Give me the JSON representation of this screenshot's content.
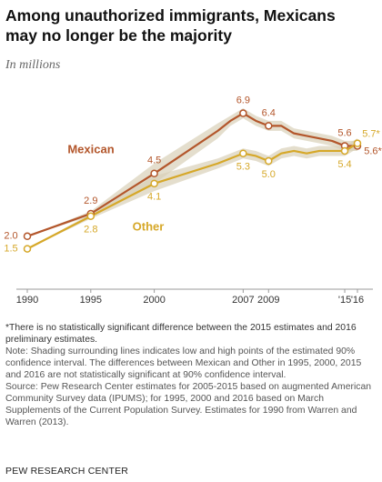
{
  "chart_data": {
    "type": "line",
    "title": "Among unauthorized immigrants, Mexicans may no longer be the majority",
    "subtitle": "In millions",
    "x": [
      1990,
      1995,
      2000,
      2005,
      2006,
      2007,
      2008,
      2009,
      2010,
      2011,
      2012,
      2013,
      2014,
      2015,
      2016
    ],
    "xlim": [
      1990,
      2016
    ],
    "xticks": [
      1990,
      1995,
      2000,
      2007,
      2009,
      {
        "value": 2015,
        "label": "'15"
      },
      {
        "value": 2016,
        "label": "'16"
      }
    ],
    "ylim": [
      0,
      10
    ],
    "series": [
      {
        "name": "Mexican",
        "color": "#b3562b",
        "values": [
          2.0,
          2.9,
          4.5,
          6.2,
          6.6,
          6.9,
          6.6,
          6.4,
          6.4,
          6.1,
          6.0,
          5.9,
          5.8,
          5.6,
          5.6
        ],
        "value_labels": [
          "2.0",
          "2.9",
          "4.5",
          null,
          null,
          "6.9",
          null,
          "6.4",
          null,
          null,
          null,
          null,
          null,
          "5.6",
          "5.6*"
        ],
        "low": [
          2.0,
          2.8,
          4.1,
          5.9,
          6.4,
          6.7,
          6.4,
          6.2,
          6.2,
          5.9,
          5.8,
          5.7,
          5.6,
          5.4,
          5.4
        ],
        "high": [
          2.0,
          3.0,
          4.9,
          6.5,
          6.8,
          7.1,
          6.8,
          6.6,
          6.6,
          6.3,
          6.2,
          6.1,
          6.0,
          5.8,
          5.8
        ]
      },
      {
        "name": "Other",
        "color": "#d6a829",
        "values": [
          1.5,
          2.8,
          4.1,
          4.9,
          5.1,
          5.3,
          5.2,
          5.0,
          5.3,
          5.4,
          5.3,
          5.4,
          5.4,
          5.4,
          5.7
        ],
        "value_labels": [
          "1.5",
          "2.8",
          "4.1",
          null,
          null,
          "5.3",
          null,
          "5.0",
          null,
          null,
          null,
          null,
          null,
          "5.4",
          "5.7*"
        ],
        "low": [
          1.5,
          2.7,
          3.8,
          4.7,
          4.9,
          5.1,
          5.0,
          4.8,
          5.1,
          5.2,
          5.1,
          5.2,
          5.2,
          5.2,
          5.5
        ],
        "high": [
          1.5,
          2.9,
          4.4,
          5.1,
          5.3,
          5.5,
          5.4,
          5.2,
          5.5,
          5.6,
          5.5,
          5.6,
          5.6,
          5.6,
          5.9
        ]
      }
    ],
    "footnote": "*There is no statistically significant difference between the 2015 estimates and 2016 preliminary estimates.",
    "note": "Note: Shading surrounding lines indicates low and high points of the estimated 90% confidence interval. The differences between Mexican and Other in 1995, 2000, 2015 and 2016 are not statistically significant at 90% confidence interval.",
    "source": "Source: Pew Research Center estimates for 2005-2015 based on augmented American Community Survey data (IPUMS); for 1995, 2000 and 2016 based on March Supplements of the Current Population Survey. Estimates for 1990 from Warren and Warren (2013).",
    "credit": "PEW RESEARCH CENTER"
  }
}
